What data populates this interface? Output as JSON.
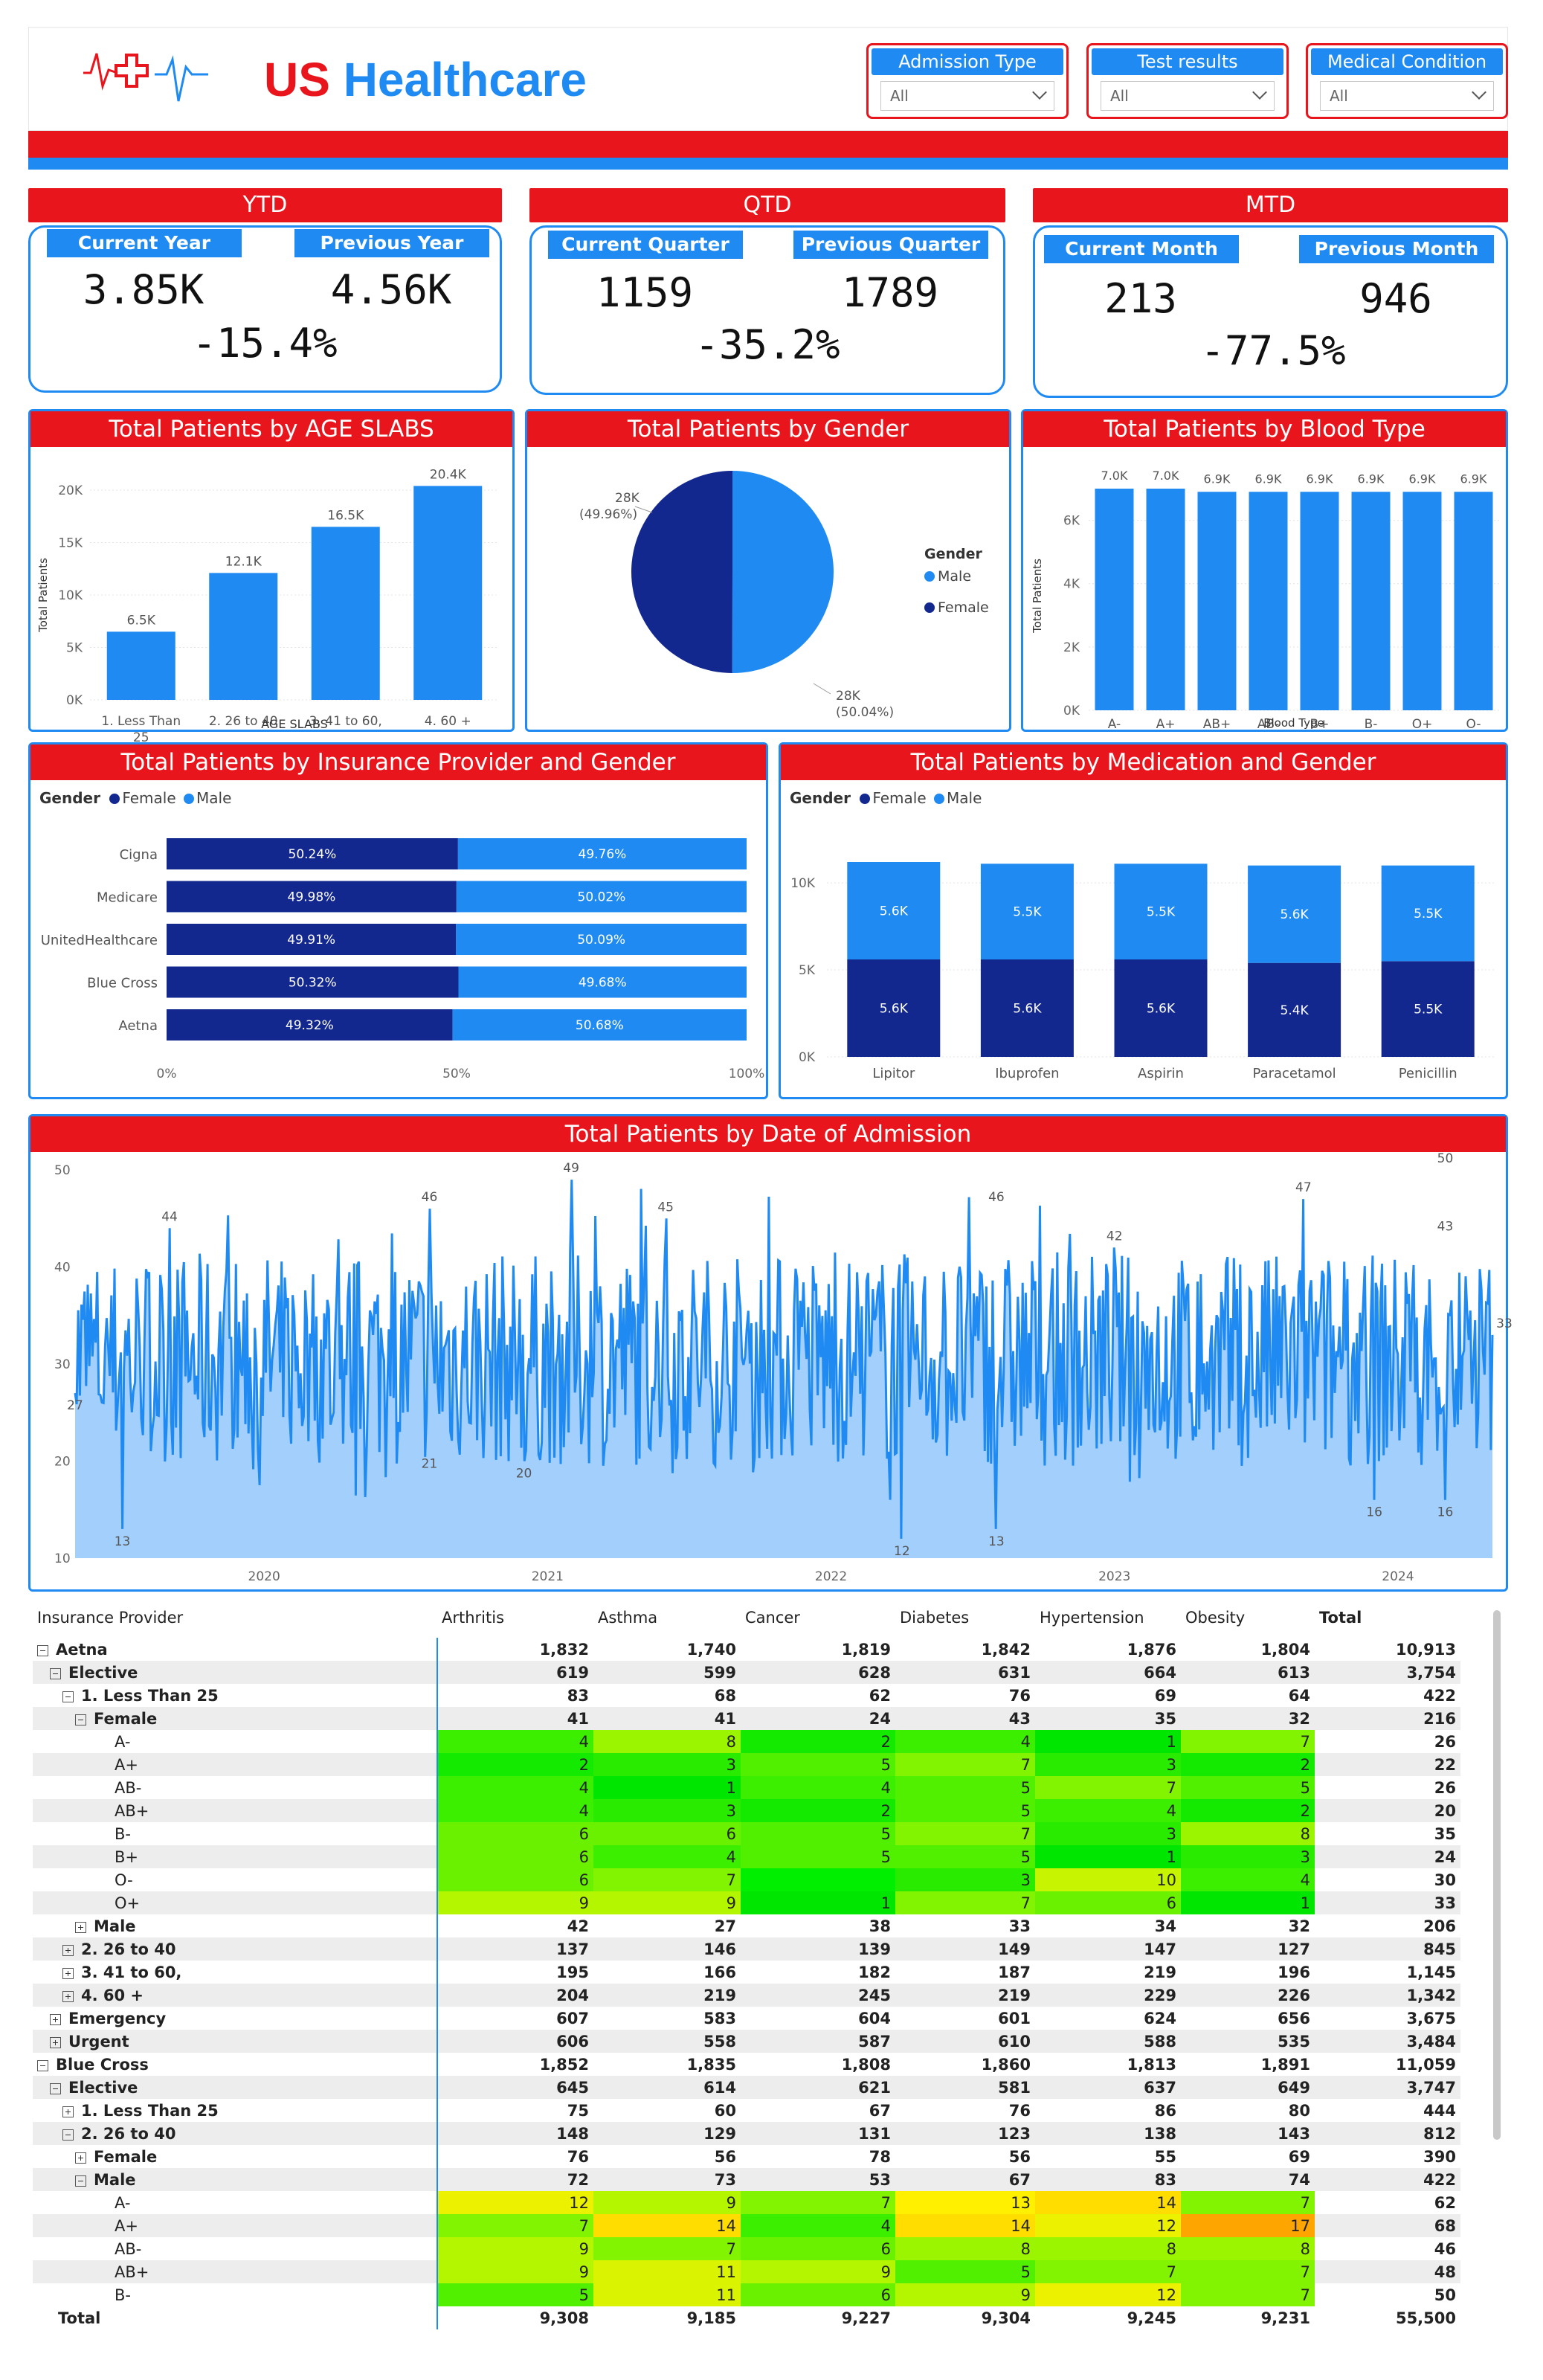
{
  "header": {
    "title_part1": "US",
    "title_part2": "Healthcare",
    "slicers": [
      {
        "label": "Admission Type",
        "value": "All"
      },
      {
        "label": "Test results",
        "value": "All"
      },
      {
        "label": "Medical Condition",
        "value": "All"
      }
    ]
  },
  "kpis": {
    "ytd": {
      "title": "YTD",
      "left_label": "Current Year",
      "left_value": "3.85K",
      "right_label": "Previous Year",
      "right_value": "4.56K",
      "change": "-15.4%"
    },
    "qtd": {
      "title": "QTD",
      "left_label": "Current Quarter",
      "left_value": "1159",
      "right_label": "Previous Quarter",
      "right_value": "1789",
      "change": "-35.2%"
    },
    "mtd": {
      "title": "MTD",
      "left_label": "Current Month",
      "left_value": "213",
      "right_label": "Previous Month",
      "right_value": "946",
      "change": "-77.5%"
    }
  },
  "colors": {
    "red": "#e8151c",
    "blue": "#1f8bf2",
    "navy": "#13288f",
    "light_blue": "#a3cffd"
  },
  "chart_data": [
    {
      "id": "age",
      "type": "bar",
      "title": "Total Patients by AGE SLABS",
      "xlabel": "AGE SLABS",
      "ylabel": "Total Patients",
      "categories": [
        "1. Less Than 25",
        "2. 26 to 40",
        "3. 41 to 60,",
        "4. 60 +"
      ],
      "category_lines": [
        [
          "1. Less Than",
          "25"
        ],
        [
          "2. 26 to 40"
        ],
        [
          "3. 41 to 60,"
        ],
        [
          "4. 60 +"
        ]
      ],
      "values": [
        6500,
        12100,
        16500,
        20400
      ],
      "data_labels": [
        "6.5K",
        "12.1K",
        "16.5K",
        "20.4K"
      ],
      "ylim": [
        0,
        20000
      ],
      "yticks": [
        0,
        5000,
        10000,
        15000,
        20000
      ],
      "ytick_labels": [
        "0K",
        "5K",
        "10K",
        "15K",
        "20K"
      ]
    },
    {
      "id": "gender",
      "type": "pie",
      "title": "Total Patients by Gender",
      "legend_title": "Gender",
      "categories": [
        "Male",
        "Female"
      ],
      "values": [
        50.04,
        49.96
      ],
      "data_labels": [
        [
          "28K",
          "(50.04%)"
        ],
        [
          "28K",
          "(49.96%)"
        ]
      ]
    },
    {
      "id": "blood",
      "type": "bar",
      "title": "Total Patients by Blood Type",
      "xlabel": "Blood Type",
      "ylabel": "Total Patients",
      "categories": [
        "A-",
        "A+",
        "AB+",
        "AB-",
        "B+",
        "B-",
        "O+",
        "O-"
      ],
      "values": [
        7000,
        7000,
        6900,
        6900,
        6900,
        6900,
        6900,
        6900
      ],
      "data_labels": [
        "7.0K",
        "7.0K",
        "6.9K",
        "6.9K",
        "6.9K",
        "6.9K",
        "6.9K",
        "6.9K"
      ],
      "ylim": [
        0,
        7000
      ],
      "yticks": [
        0,
        2000,
        4000,
        6000
      ],
      "ytick_labels": [
        "0K",
        "2K",
        "4K",
        "6K"
      ]
    },
    {
      "id": "insurance",
      "type": "bar",
      "orientation": "horizontal-100%-stacked",
      "title": "Total Patients by Insurance Provider and Gender",
      "legend_title": "Gender",
      "categories": [
        "Cigna",
        "Medicare",
        "UnitedHealthcare",
        "Blue Cross",
        "Aetna"
      ],
      "series": [
        {
          "name": "Female",
          "values": [
            50.24,
            49.98,
            49.91,
            50.32,
            49.32
          ],
          "labels": [
            "50.24%",
            "49.98%",
            "49.91%",
            "50.32%",
            "49.32%"
          ]
        },
        {
          "name": "Male",
          "values": [
            49.76,
            50.02,
            50.09,
            49.68,
            50.68
          ],
          "labels": [
            "49.76%",
            "50.02%",
            "50.09%",
            "49.68%",
            "50.68%"
          ]
        }
      ],
      "xticks": [
        "0%",
        "50%",
        "100%"
      ]
    },
    {
      "id": "medication",
      "type": "bar",
      "orientation": "vertical-stacked",
      "title": "Total Patients by Medication and Gender",
      "legend_title": "Gender",
      "categories": [
        "Lipitor",
        "Ibuprofen",
        "Aspirin",
        "Paracetamol",
        "Penicillin"
      ],
      "series": [
        {
          "name": "Female",
          "values": [
            5600,
            5600,
            5600,
            5400,
            5500
          ],
          "labels": [
            "5.6K",
            "5.6K",
            "5.6K",
            "5.4K",
            "5.5K"
          ]
        },
        {
          "name": "Male",
          "values": [
            5600,
            5500,
            5500,
            5600,
            5500
          ],
          "labels": [
            "5.6K",
            "5.5K",
            "5.5K",
            "5.6K",
            "5.5K"
          ]
        }
      ],
      "ylim": [
        0,
        11200
      ],
      "yticks": [
        0,
        5000,
        10000
      ],
      "ytick_labels": [
        "0K",
        "5K",
        "10K"
      ]
    },
    {
      "id": "admission",
      "type": "area",
      "title": "Total Patients by Date of Admission",
      "x_range": [
        "2019-05",
        "2024-05"
      ],
      "xticks": [
        "2020",
        "2021",
        "2022",
        "2023",
        "2024"
      ],
      "ylim": [
        10,
        50
      ],
      "yticks": [
        10,
        20,
        30,
        40,
        50
      ],
      "annotations": [
        {
          "date": "2019-05",
          "value": 27,
          "label": "27"
        },
        {
          "date": "2019-07",
          "value": 13,
          "label": "13"
        },
        {
          "date": "2019-09",
          "value": 44,
          "label": "44"
        },
        {
          "date": "2020-08",
          "value": 21,
          "label": "21"
        },
        {
          "date": "2020-08",
          "value": 46,
          "label": "46"
        },
        {
          "date": "2020-12",
          "value": 20,
          "label": "20"
        },
        {
          "date": "2021-02",
          "value": 49,
          "label": "49"
        },
        {
          "date": "2021-06",
          "value": 45,
          "label": "45"
        },
        {
          "date": "2022-04",
          "value": 12,
          "label": "12"
        },
        {
          "date": "2022-08",
          "value": 46,
          "label": "46"
        },
        {
          "date": "2022-08",
          "value": 13,
          "label": "13"
        },
        {
          "date": "2023-01",
          "value": 42,
          "label": "42"
        },
        {
          "date": "2023-09",
          "value": 47,
          "label": "47"
        },
        {
          "date": "2023-12",
          "value": 16,
          "label": "16"
        },
        {
          "date": "2024-03",
          "value": 50,
          "label": "50"
        },
        {
          "date": "2024-03",
          "value": 43,
          "label": "43"
        },
        {
          "date": "2024-03",
          "value": 16,
          "label": "16"
        },
        {
          "date": "2024-05",
          "value": 33,
          "label": "33"
        }
      ]
    },
    {
      "id": "matrix",
      "type": "table",
      "columns": [
        "Insurance Provider",
        "Arthritis",
        "Asthma",
        "Cancer",
        "Diabetes",
        "Hypertension",
        "Obesity",
        "Total"
      ],
      "rows": [
        {
          "label": "Aetna",
          "level": 0,
          "toggle": "minus",
          "bold": true,
          "values": [
            "1,832",
            "1,740",
            "1,819",
            "1,842",
            "1,876",
            "1,804",
            "10,913"
          ]
        },
        {
          "label": "Elective",
          "level": 1,
          "toggle": "minus",
          "bold": true,
          "values": [
            "619",
            "599",
            "628",
            "631",
            "664",
            "613",
            "3,754"
          ]
        },
        {
          "label": "1. Less Than 25",
          "level": 2,
          "toggle": "minus",
          "bold": true,
          "values": [
            "83",
            "68",
            "62",
            "76",
            "69",
            "64",
            "422"
          ]
        },
        {
          "label": "Female",
          "level": 3,
          "toggle": "minus",
          "bold": true,
          "values": [
            "41",
            "41",
            "24",
            "43",
            "35",
            "32",
            "216"
          ]
        },
        {
          "label": "A-",
          "level": 4,
          "heat": true,
          "values": [
            "4",
            "8",
            "2",
            "4",
            "1",
            "7",
            "26"
          ]
        },
        {
          "label": "A+",
          "level": 4,
          "heat": true,
          "values": [
            "2",
            "3",
            "5",
            "7",
            "3",
            "2",
            "22"
          ]
        },
        {
          "label": "AB-",
          "level": 4,
          "heat": true,
          "values": [
            "4",
            "1",
            "4",
            "5",
            "7",
            "5",
            "26"
          ]
        },
        {
          "label": "AB+",
          "level": 4,
          "heat": true,
          "values": [
            "4",
            "3",
            "2",
            "5",
            "4",
            "2",
            "20"
          ]
        },
        {
          "label": "B-",
          "level": 4,
          "heat": true,
          "values": [
            "6",
            "6",
            "5",
            "7",
            "3",
            "8",
            "35"
          ]
        },
        {
          "label": "B+",
          "level": 4,
          "heat": true,
          "values": [
            "6",
            "4",
            "5",
            "5",
            "1",
            "3",
            "24"
          ]
        },
        {
          "label": "O-",
          "level": 4,
          "heat": true,
          "values": [
            "6",
            "7",
            "",
            "3",
            "10",
            "4",
            "30"
          ]
        },
        {
          "label": "O+",
          "level": 4,
          "heat": true,
          "values": [
            "9",
            "9",
            "1",
            "7",
            "6",
            "1",
            "33"
          ]
        },
        {
          "label": "Male",
          "level": 3,
          "toggle": "plus",
          "bold": true,
          "values": [
            "42",
            "27",
            "38",
            "33",
            "34",
            "32",
            "206"
          ]
        },
        {
          "label": "2. 26 to 40",
          "level": 2,
          "toggle": "plus",
          "bold": true,
          "values": [
            "137",
            "146",
            "139",
            "149",
            "147",
            "127",
            "845"
          ]
        },
        {
          "label": "3. 41 to 60,",
          "level": 2,
          "toggle": "plus",
          "bold": true,
          "values": [
            "195",
            "166",
            "182",
            "187",
            "219",
            "196",
            "1,145"
          ]
        },
        {
          "label": "4. 60 +",
          "level": 2,
          "toggle": "plus",
          "bold": true,
          "values": [
            "204",
            "219",
            "245",
            "219",
            "229",
            "226",
            "1,342"
          ]
        },
        {
          "label": "Emergency",
          "level": 1,
          "toggle": "plus",
          "bold": true,
          "values": [
            "607",
            "583",
            "604",
            "601",
            "624",
            "656",
            "3,675"
          ]
        },
        {
          "label": "Urgent",
          "level": 1,
          "toggle": "plus",
          "bold": true,
          "values": [
            "606",
            "558",
            "587",
            "610",
            "588",
            "535",
            "3,484"
          ]
        },
        {
          "label": "Blue Cross",
          "level": 0,
          "toggle": "minus",
          "bold": true,
          "values": [
            "1,852",
            "1,835",
            "1,808",
            "1,860",
            "1,813",
            "1,891",
            "11,059"
          ]
        },
        {
          "label": "Elective",
          "level": 1,
          "toggle": "minus",
          "bold": true,
          "values": [
            "645",
            "614",
            "621",
            "581",
            "637",
            "649",
            "3,747"
          ]
        },
        {
          "label": "1. Less Than 25",
          "level": 2,
          "toggle": "plus",
          "bold": true,
          "values": [
            "75",
            "60",
            "67",
            "76",
            "86",
            "80",
            "444"
          ]
        },
        {
          "label": "2. 26 to 40",
          "level": 2,
          "toggle": "minus",
          "bold": true,
          "values": [
            "148",
            "129",
            "131",
            "123",
            "138",
            "143",
            "812"
          ]
        },
        {
          "label": "Female",
          "level": 3,
          "toggle": "plus",
          "bold": true,
          "values": [
            "76",
            "56",
            "78",
            "56",
            "55",
            "69",
            "390"
          ]
        },
        {
          "label": "Male",
          "level": 3,
          "toggle": "minus",
          "bold": true,
          "values": [
            "72",
            "73",
            "53",
            "67",
            "83",
            "74",
            "422"
          ]
        },
        {
          "label": "A-",
          "level": 4,
          "heat": true,
          "values": [
            "12",
            "9",
            "7",
            "13",
            "14",
            "7",
            "62"
          ]
        },
        {
          "label": "A+",
          "level": 4,
          "heat": true,
          "values": [
            "7",
            "14",
            "4",
            "14",
            "12",
            "17",
            "68"
          ]
        },
        {
          "label": "AB-",
          "level": 4,
          "heat": true,
          "values": [
            "9",
            "7",
            "6",
            "8",
            "8",
            "8",
            "46"
          ]
        },
        {
          "label": "AB+",
          "level": 4,
          "heat": true,
          "values": [
            "9",
            "11",
            "9",
            "5",
            "7",
            "7",
            "48"
          ]
        },
        {
          "label": "B-",
          "level": 4,
          "heat": true,
          "values": [
            "5",
            "11",
            "6",
            "9",
            "12",
            "7",
            "50"
          ]
        }
      ],
      "total_row": {
        "label": "Total",
        "values": [
          "9,308",
          "9,185",
          "9,227",
          "9,304",
          "9,245",
          "9,231",
          "55,500"
        ]
      }
    }
  ]
}
